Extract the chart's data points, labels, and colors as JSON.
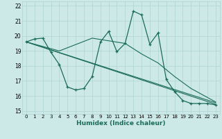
{
  "xlabel": "Humidex (Indice chaleur)",
  "xlim": [
    -0.5,
    23.5
  ],
  "ylim": [
    14.8,
    22.3
  ],
  "xticks": [
    0,
    1,
    2,
    3,
    4,
    5,
    6,
    7,
    8,
    9,
    10,
    11,
    12,
    13,
    14,
    15,
    16,
    17,
    18,
    19,
    20,
    21,
    22,
    23
  ],
  "yticks": [
    15,
    16,
    17,
    18,
    19,
    20,
    21,
    22
  ],
  "bg_color": "#cce9e8",
  "grid_color": "#aed4d2",
  "line_color": "#1a6b5a",
  "line1_x": [
    0,
    1,
    2,
    3,
    4,
    5,
    6,
    7,
    8,
    9,
    10,
    11,
    12,
    13,
    14,
    15,
    16,
    17,
    18,
    19,
    20,
    21,
    22,
    23
  ],
  "line1_y": [
    19.6,
    19.8,
    19.85,
    18.9,
    18.1,
    16.6,
    16.4,
    16.5,
    17.3,
    19.6,
    20.3,
    18.95,
    19.5,
    21.65,
    21.4,
    19.45,
    20.2,
    17.1,
    16.3,
    15.7,
    15.5,
    15.5,
    15.5,
    15.4
  ],
  "line2_x": [
    0,
    23
  ],
  "line2_y": [
    19.6,
    15.45
  ],
  "line3_x": [
    0,
    23
  ],
  "line3_y": [
    19.6,
    15.55
  ],
  "line4_x": [
    0,
    4,
    8,
    12,
    14,
    16,
    18,
    19,
    20,
    21,
    22,
    23
  ],
  "line4_y": [
    19.6,
    19.0,
    19.85,
    19.5,
    18.8,
    18.2,
    17.3,
    16.9,
    16.5,
    16.2,
    15.9,
    15.6
  ]
}
